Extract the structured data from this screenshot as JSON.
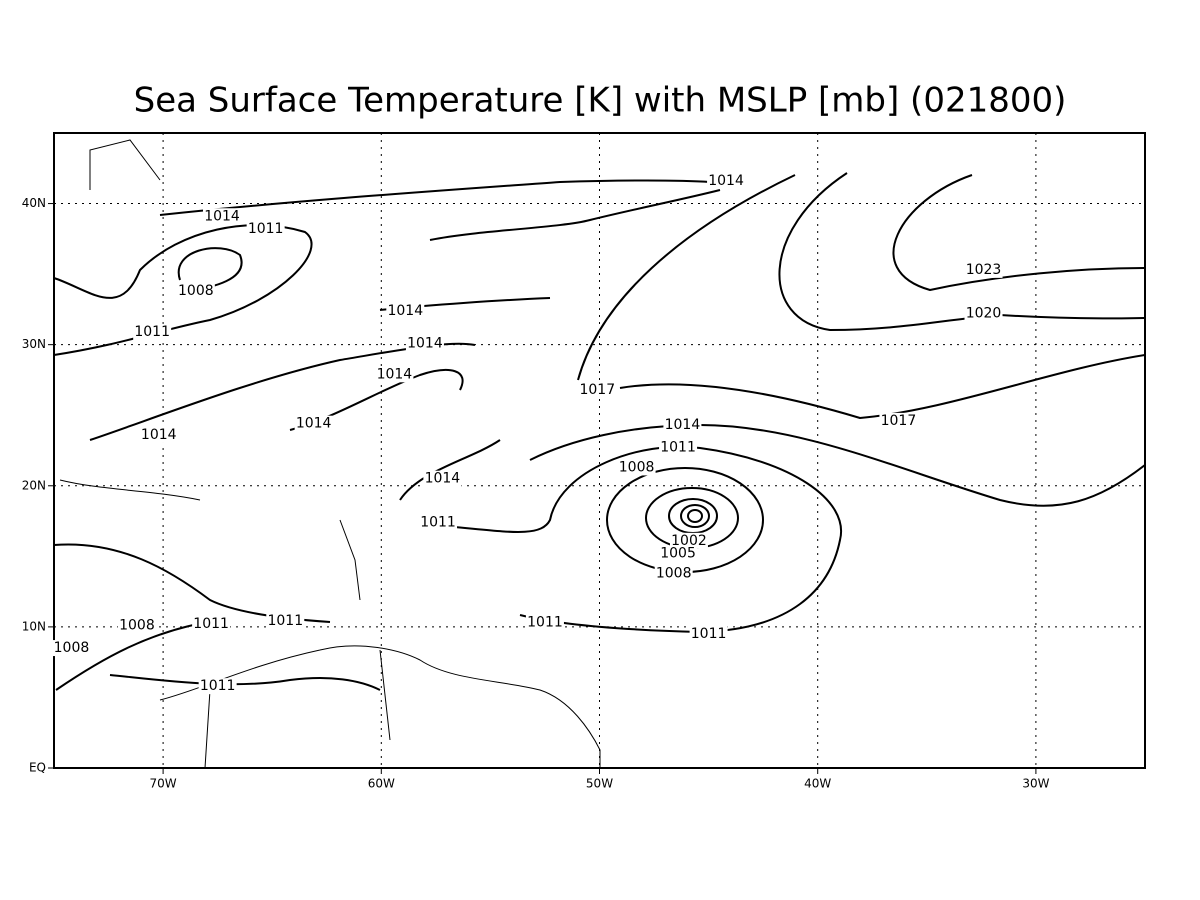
{
  "title": "Sea Surface Temperature [K] with MSLP [mb] (021800)",
  "map": {
    "xlim": [
      -75,
      -25
    ],
    "ylim": [
      0,
      45
    ],
    "xticks": [
      {
        "value": -70,
        "label": "70W"
      },
      {
        "value": -60,
        "label": "60W"
      },
      {
        "value": -50,
        "label": "50W"
      },
      {
        "value": -40,
        "label": "40W"
      },
      {
        "value": -30,
        "label": "30W"
      }
    ],
    "yticks": [
      {
        "value": 0,
        "label": "EQ"
      },
      {
        "value": 10,
        "label": "10N"
      },
      {
        "value": 20,
        "label": "20N"
      },
      {
        "value": 30,
        "label": "30N"
      },
      {
        "value": 40,
        "label": "40N"
      }
    ],
    "contour_labels": [
      {
        "level": 1014,
        "lon": -44.2,
        "lat": 41.6
      },
      {
        "level": 1014,
        "lon": -67.3,
        "lat": 39.1
      },
      {
        "level": 1011,
        "lon": -65.3,
        "lat": 38.2
      },
      {
        "level": 1008,
        "lon": -68.5,
        "lat": 33.8
      },
      {
        "level": 1011,
        "lon": -70.5,
        "lat": 30.9
      },
      {
        "level": 1014,
        "lon": -58.9,
        "lat": 32.4
      },
      {
        "level": 1014,
        "lon": -58.0,
        "lat": 30.1
      },
      {
        "level": 1014,
        "lon": -59.4,
        "lat": 27.9
      },
      {
        "level": 1014,
        "lon": -70.2,
        "lat": 23.6
      },
      {
        "level": 1014,
        "lon": -63.1,
        "lat": 24.4
      },
      {
        "level": 1014,
        "lon": -57.2,
        "lat": 20.5
      },
      {
        "level": 1011,
        "lon": -57.4,
        "lat": 17.4
      },
      {
        "level": 1017,
        "lon": -50.1,
        "lat": 26.8
      },
      {
        "level": 1017,
        "lon": -36.3,
        "lat": 24.6
      },
      {
        "level": 1023,
        "lon": -32.4,
        "lat": 35.3
      },
      {
        "level": 1020,
        "lon": -32.4,
        "lat": 32.2
      },
      {
        "level": 1014,
        "lon": -46.2,
        "lat": 24.3
      },
      {
        "level": 1011,
        "lon": -46.4,
        "lat": 22.7
      },
      {
        "level": 1008,
        "lon": -48.3,
        "lat": 21.3
      },
      {
        "level": 1002,
        "lon": -45.9,
        "lat": 16.1
      },
      {
        "level": 1005,
        "lon": -46.4,
        "lat": 15.2
      },
      {
        "level": 1008,
        "lon": -46.6,
        "lat": 13.8
      },
      {
        "level": 1011,
        "lon": -52.5,
        "lat": 10.3
      },
      {
        "level": 1011,
        "lon": -45.0,
        "lat": 9.5
      },
      {
        "level": 1011,
        "lon": -64.4,
        "lat": 10.4
      },
      {
        "level": 1011,
        "lon": -67.8,
        "lat": 10.2
      },
      {
        "level": 1008,
        "lon": -71.2,
        "lat": 10.1
      },
      {
        "level": 1008,
        "lon": -74.2,
        "lat": 8.5
      },
      {
        "level": 1011,
        "lon": -67.5,
        "lat": 5.8
      }
    ]
  }
}
